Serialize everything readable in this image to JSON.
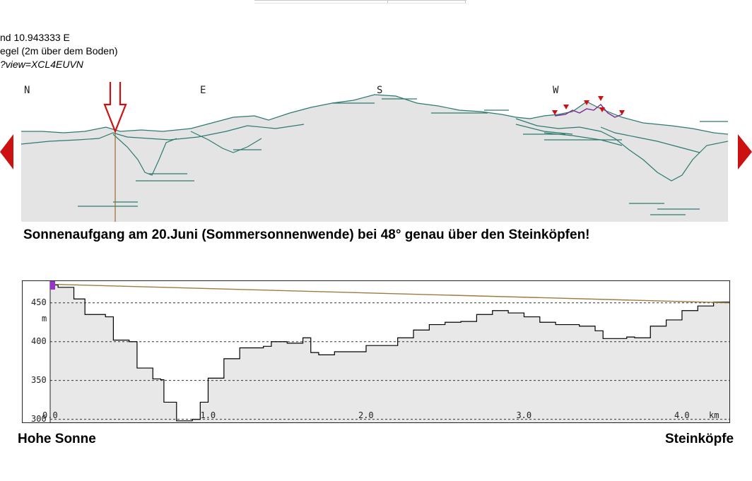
{
  "location": {
    "coords_line": "nd 10.943333 E",
    "height_line": "egel (2m über dem Boden)",
    "view_line": "?view=XCL4EUVN"
  },
  "panorama": {
    "compass": [
      "N",
      "E",
      "S",
      "W"
    ],
    "colors": {
      "ridge": "#2e7a70",
      "sky_fill": "#e4e4e4",
      "arrow": "#cc1111",
      "sun_line": "#9a6a30",
      "peak_marker": "#cc1111",
      "summit_line": "#7a2a90"
    }
  },
  "caption": "Sonnenaufgang am 20.Juni (Sommersonnenwende) bei 48° genau über den Steinköpfen!",
  "chart_data": {
    "type": "line",
    "title": "",
    "xlabel": "",
    "ylabel": "m",
    "x_unit": "km",
    "xlim": [
      0,
      4.3
    ],
    "ylim": [
      296,
      478
    ],
    "x_ticks": [
      "0.0",
      "1.0",
      "2.0",
      "3.0",
      "4.0"
    ],
    "y_ticks": [
      "450",
      "400",
      "350",
      "300"
    ],
    "grid": "horizontal-dashed",
    "series": [
      {
        "name": "",
        "color": "#000000",
        "x": [
          0.0,
          0.05,
          0.15,
          0.22,
          0.35,
          0.4,
          0.5,
          0.55,
          0.65,
          0.7,
          0.72,
          0.8,
          0.9,
          0.95,
          1.0,
          1.1,
          1.2,
          1.35,
          1.4,
          1.5,
          1.6,
          1.65,
          1.7,
          1.8,
          2.0,
          2.2,
          2.3,
          2.4,
          2.5,
          2.6,
          2.7,
          2.8,
          2.9,
          3.0,
          3.1,
          3.2,
          3.35,
          3.45,
          3.5,
          3.6,
          3.65,
          3.7,
          3.8,
          3.9,
          4.0,
          4.1,
          4.2,
          4.3
        ],
        "y": [
          473,
          470,
          455,
          435,
          432,
          402,
          400,
          366,
          352,
          351,
          322,
          298,
          300,
          322,
          353,
          378,
          392,
          394,
          400,
          398,
          405,
          386,
          383,
          387,
          395,
          405,
          415,
          422,
          425,
          426,
          435,
          440,
          437,
          432,
          425,
          422,
          420,
          414,
          404,
          404,
          406,
          405,
          420,
          428,
          440,
          446,
          451,
          451
        ]
      },
      {
        "name": "",
        "color": "#a07a40",
        "x": [
          0.0,
          4.3
        ],
        "y": [
          474,
          450
        ]
      }
    ],
    "start_marker": {
      "color": "#9933cc"
    }
  },
  "endpoints": {
    "left": "Hohe Sonne",
    "right": "Steinköpfe"
  }
}
